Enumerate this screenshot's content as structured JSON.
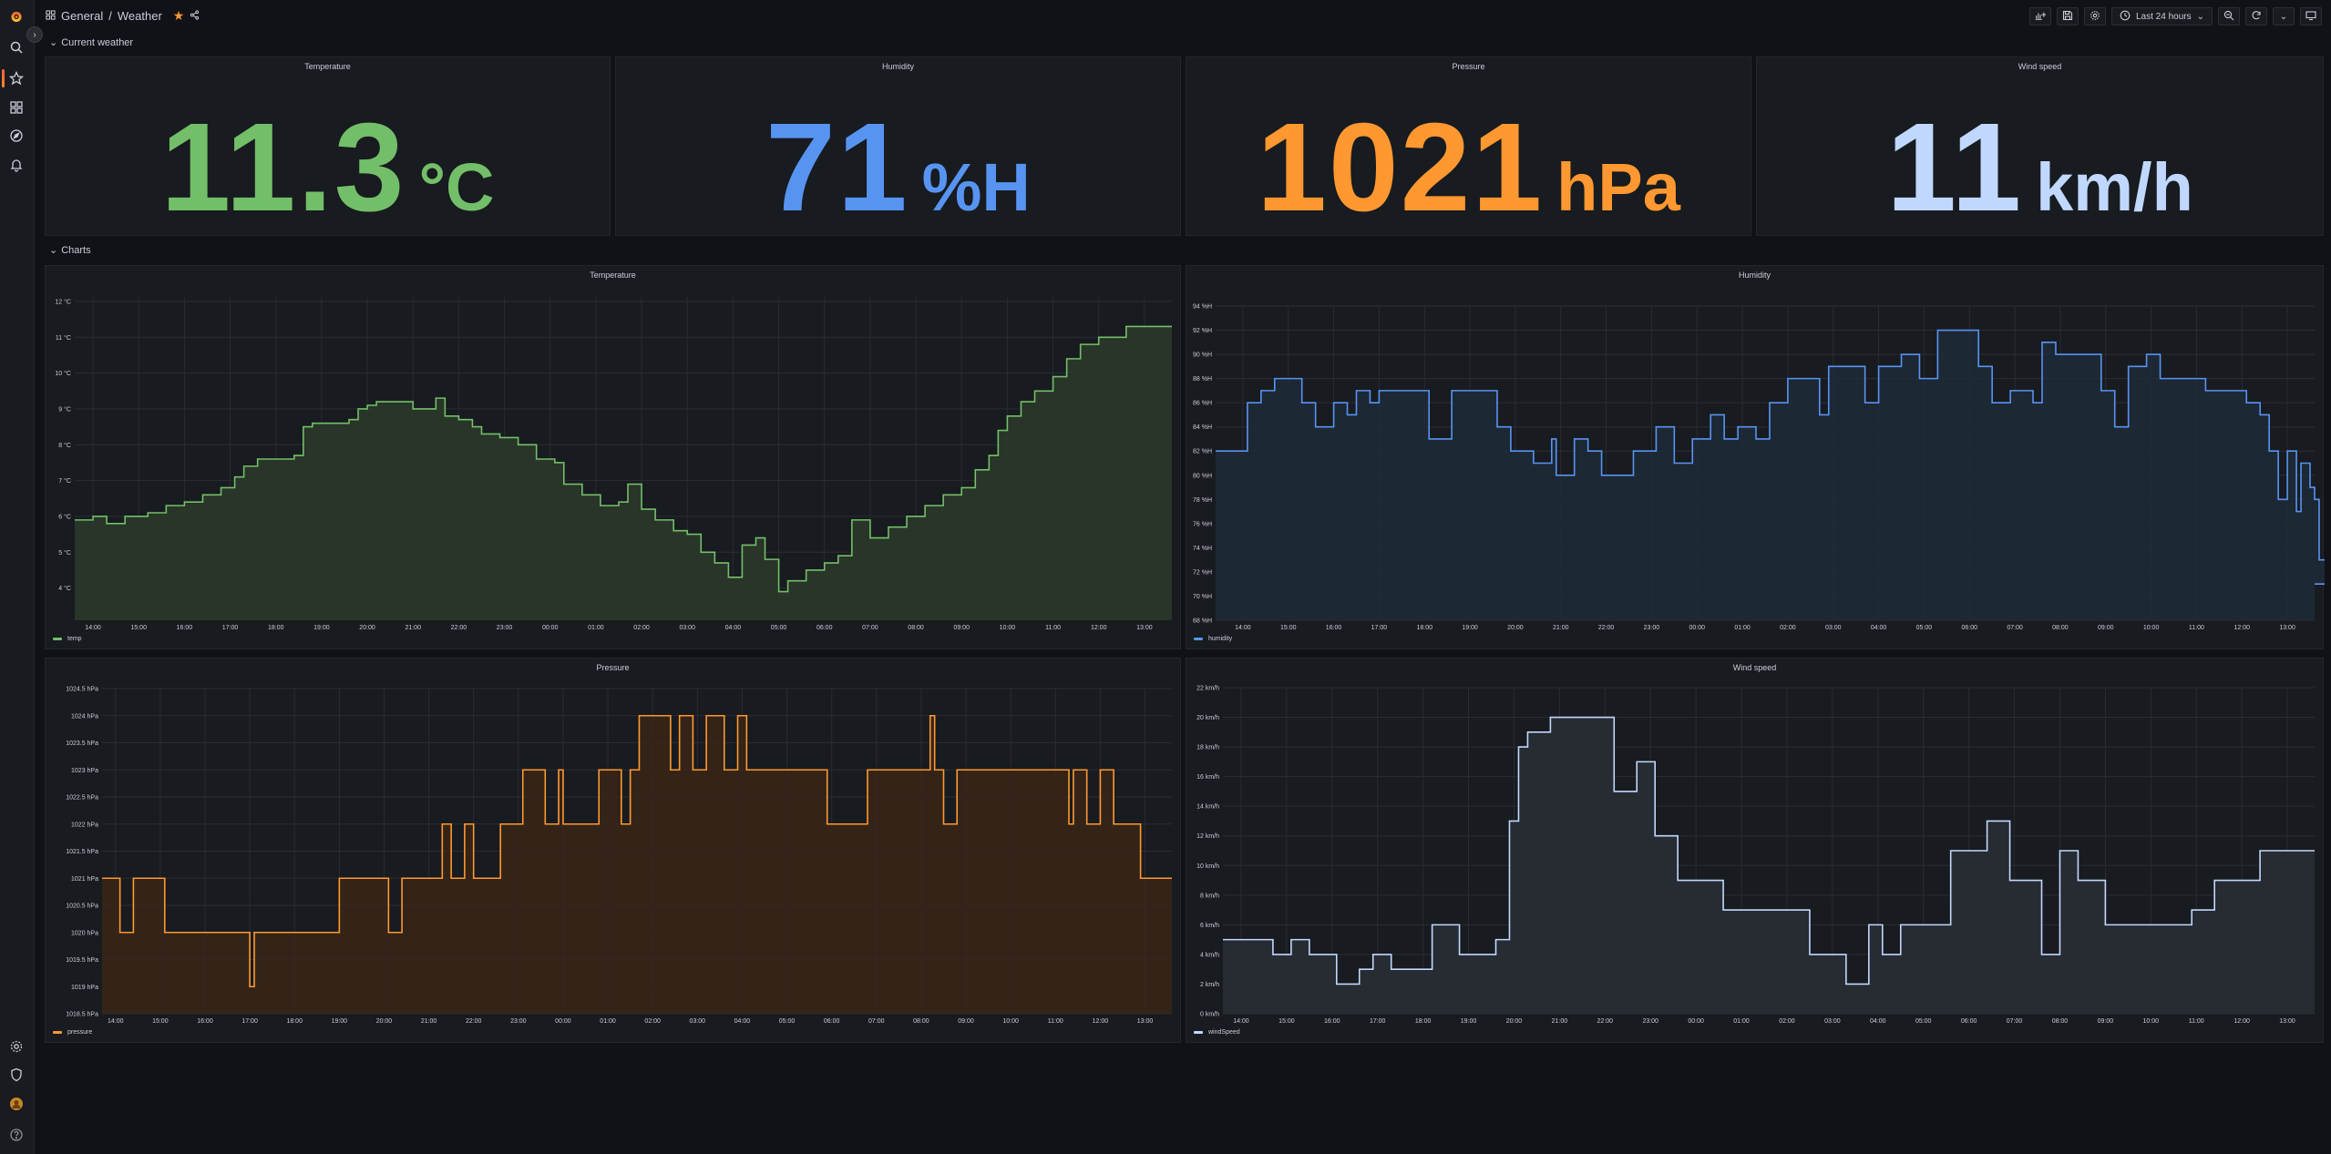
{
  "breadcrumb": {
    "folder": "General",
    "dashboard": "Weather"
  },
  "toolbar": {
    "time_range": "Last 24 hours"
  },
  "rows": {
    "current": "Current weather",
    "charts": "Charts"
  },
  "colors": {
    "temperature": "#73bf69",
    "humidity": "#5794f2",
    "pressure": "#ff9830",
    "wind": "#c0d8ff",
    "accent": "#f55f3e"
  },
  "stats": [
    {
      "title": "Temperature",
      "value": "11.3",
      "unit": "°C",
      "color": "#73bf69"
    },
    {
      "title": "Humidity",
      "value": "71",
      "unit": "%H",
      "color": "#5794f2"
    },
    {
      "title": "Pressure",
      "value": "1021",
      "unit": "hPa",
      "color": "#ff9830"
    },
    {
      "title": "Wind speed",
      "value": "11",
      "unit": "km/h",
      "color": "#c0d8ff"
    }
  ],
  "chart_data": [
    {
      "type": "line",
      "title": "Temperature",
      "legend": "temp",
      "color": "#73bf69",
      "step": true,
      "fill": "#2c3a2a",
      "x_ticks": [
        "14:00",
        "15:00",
        "16:00",
        "17:00",
        "18:00",
        "19:00",
        "20:00",
        "21:00",
        "22:00",
        "23:00",
        "00:00",
        "01:00",
        "02:00",
        "03:00",
        "04:00",
        "05:00",
        "06:00",
        "07:00",
        "08:00",
        "09:00",
        "10:00",
        "11:00",
        "12:00",
        "13:00"
      ],
      "y_ticks": [
        "4 °C",
        "5 °C",
        "6 °C",
        "7 °C",
        "8 °C",
        "9 °C",
        "10 °C",
        "11 °C",
        "12 °C"
      ],
      "ylim": [
        3.1,
        12.1
      ],
      "x_range": [
        13.6,
        37.6
      ],
      "points": [
        [
          13.6,
          5.9
        ],
        [
          14.0,
          6.0
        ],
        [
          14.3,
          5.8
        ],
        [
          14.7,
          6.0
        ],
        [
          15.2,
          6.1
        ],
        [
          15.6,
          6.3
        ],
        [
          16.0,
          6.4
        ],
        [
          16.4,
          6.6
        ],
        [
          16.8,
          6.8
        ],
        [
          17.1,
          7.1
        ],
        [
          17.3,
          7.4
        ],
        [
          17.6,
          7.6
        ],
        [
          18.0,
          7.6
        ],
        [
          18.4,
          7.7
        ],
        [
          18.6,
          8.5
        ],
        [
          18.8,
          8.6
        ],
        [
          19.2,
          8.6
        ],
        [
          19.6,
          8.7
        ],
        [
          19.8,
          9.0
        ],
        [
          20.0,
          9.1
        ],
        [
          20.2,
          9.2
        ],
        [
          21.0,
          9.0
        ],
        [
          21.5,
          9.3
        ],
        [
          21.7,
          8.8
        ],
        [
          22.0,
          8.7
        ],
        [
          22.3,
          8.5
        ],
        [
          22.5,
          8.3
        ],
        [
          22.9,
          8.2
        ],
        [
          23.3,
          8.0
        ],
        [
          23.7,
          7.6
        ],
        [
          24.1,
          7.5
        ],
        [
          24.3,
          6.9
        ],
        [
          24.7,
          6.6
        ],
        [
          25.1,
          6.3
        ],
        [
          25.5,
          6.4
        ],
        [
          25.7,
          6.9
        ],
        [
          26.0,
          6.2
        ],
        [
          26.3,
          5.9
        ],
        [
          26.7,
          5.6
        ],
        [
          27.0,
          5.5
        ],
        [
          27.3,
          5.0
        ],
        [
          27.6,
          4.7
        ],
        [
          27.9,
          4.3
        ],
        [
          28.2,
          5.2
        ],
        [
          28.5,
          5.4
        ],
        [
          28.7,
          4.8
        ],
        [
          29.0,
          3.9
        ],
        [
          29.2,
          4.2
        ],
        [
          29.6,
          4.5
        ],
        [
          30.0,
          4.7
        ],
        [
          30.3,
          4.9
        ],
        [
          30.6,
          5.9
        ],
        [
          31.0,
          5.4
        ],
        [
          31.4,
          5.7
        ],
        [
          31.8,
          6.0
        ],
        [
          32.2,
          6.3
        ],
        [
          32.6,
          6.6
        ],
        [
          33.0,
          6.8
        ],
        [
          33.3,
          7.3
        ],
        [
          33.6,
          7.7
        ],
        [
          33.8,
          8.4
        ],
        [
          34.0,
          8.8
        ],
        [
          34.3,
          9.2
        ],
        [
          34.6,
          9.5
        ],
        [
          35.0,
          9.9
        ],
        [
          35.3,
          10.4
        ],
        [
          35.6,
          10.8
        ],
        [
          36.0,
          11.0
        ],
        [
          36.6,
          11.3
        ],
        [
          37.6,
          11.3
        ]
      ]
    },
    {
      "type": "line",
      "title": "Humidity",
      "legend": "humidity",
      "color": "#5794f2",
      "step": true,
      "fill": "#1f2a3a",
      "x_ticks": [
        "14:00",
        "15:00",
        "16:00",
        "17:00",
        "18:00",
        "19:00",
        "20:00",
        "21:00",
        "22:00",
        "23:00",
        "00:00",
        "01:00",
        "02:00",
        "03:00",
        "04:00",
        "05:00",
        "06:00",
        "07:00",
        "08:00",
        "09:00",
        "10:00",
        "11:00",
        "12:00",
        "13:00"
      ],
      "y_ticks": [
        "68 %H",
        "70 %H",
        "72 %H",
        "74 %H",
        "76 %H",
        "78 %H",
        "80 %H",
        "82 %H",
        "84 %H",
        "86 %H",
        "88 %H",
        "90 %H",
        "92 %H",
        "94 %H"
      ],
      "ylim": [
        68,
        94
      ],
      "x_range": [
        13.4,
        37.6
      ],
      "points": [
        [
          13.4,
          82
        ],
        [
          13.9,
          82
        ],
        [
          14.1,
          86
        ],
        [
          14.4,
          87
        ],
        [
          14.7,
          88
        ],
        [
          15.3,
          86
        ],
        [
          15.6,
          84
        ],
        [
          16.0,
          86
        ],
        [
          16.3,
          85
        ],
        [
          16.5,
          87
        ],
        [
          16.8,
          86
        ],
        [
          17.0,
          87
        ],
        [
          18.1,
          83
        ],
        [
          18.6,
          87
        ],
        [
          19.6,
          84
        ],
        [
          19.9,
          82
        ],
        [
          20.4,
          81
        ],
        [
          20.8,
          83
        ],
        [
          20.9,
          80
        ],
        [
          21.3,
          83
        ],
        [
          21.6,
          82
        ],
        [
          21.9,
          80
        ],
        [
          22.6,
          82
        ],
        [
          23.1,
          84
        ],
        [
          23.5,
          81
        ],
        [
          23.9,
          83
        ],
        [
          24.3,
          85
        ],
        [
          24.6,
          83
        ],
        [
          24.9,
          84
        ],
        [
          25.3,
          83
        ],
        [
          25.6,
          86
        ],
        [
          26.0,
          88
        ],
        [
          26.7,
          85
        ],
        [
          26.9,
          89
        ],
        [
          27.7,
          86
        ],
        [
          28.0,
          89
        ],
        [
          28.5,
          90
        ],
        [
          28.9,
          88
        ],
        [
          29.3,
          92
        ],
        [
          30.2,
          89
        ],
        [
          30.5,
          86
        ],
        [
          30.9,
          87
        ],
        [
          31.4,
          86
        ],
        [
          31.6,
          91
        ],
        [
          31.9,
          90
        ],
        [
          32.9,
          87
        ],
        [
          33.2,
          84
        ],
        [
          33.5,
          89
        ],
        [
          33.9,
          90
        ],
        [
          34.2,
          88
        ],
        [
          35.2,
          87
        ],
        [
          36.1,
          86
        ],
        [
          36.4,
          85
        ],
        [
          36.6,
          82
        ],
        [
          36.8,
          78
        ],
        [
          37.0,
          82
        ],
        [
          37.2,
          77
        ],
        [
          37.3,
          81
        ],
        [
          37.5,
          79
        ],
        [
          37.6,
          78
        ],
        [
          37.7,
          73
        ],
        [
          37.9,
          72
        ],
        [
          38.1,
          71
        ]
      ]
    },
    {
      "type": "line",
      "title": "Pressure",
      "legend": "pressure",
      "color": "#ff9830",
      "step": true,
      "fill": "#3a2618",
      "x_ticks": [
        "14:00",
        "15:00",
        "16:00",
        "17:00",
        "18:00",
        "19:00",
        "20:00",
        "21:00",
        "22:00",
        "23:00",
        "00:00",
        "01:00",
        "02:00",
        "03:00",
        "04:00",
        "05:00",
        "06:00",
        "07:00",
        "08:00",
        "09:00",
        "10:00",
        "11:00",
        "12:00",
        "13:00"
      ],
      "y_ticks": [
        "1018.5 hPa",
        "1019 hPa",
        "1019.5 hPa",
        "1020 hPa",
        "1020.5 hPa",
        "1021 hPa",
        "1021.5 hPa",
        "1022 hPa",
        "1022.5 hPa",
        "1023 hPa",
        "1023.5 hPa",
        "1024 hPa",
        "1024.5 hPa"
      ],
      "ylim": [
        1018.5,
        1024.5
      ],
      "x_range": [
        13.7,
        37.6
      ],
      "points": [
        [
          13.7,
          1021
        ],
        [
          14.1,
          1020
        ],
        [
          14.4,
          1021
        ],
        [
          15.1,
          1020
        ],
        [
          17.0,
          1019
        ],
        [
          17.1,
          1020
        ],
        [
          19.0,
          1021
        ],
        [
          20.1,
          1020
        ],
        [
          20.4,
          1021
        ],
        [
          21.3,
          1022
        ],
        [
          21.5,
          1021
        ],
        [
          21.8,
          1022
        ],
        [
          22.0,
          1021
        ],
        [
          22.6,
          1022
        ],
        [
          23.1,
          1023
        ],
        [
          23.6,
          1022
        ],
        [
          23.9,
          1023
        ],
        [
          24.0,
          1022
        ],
        [
          24.8,
          1023
        ],
        [
          25.3,
          1022
        ],
        [
          25.5,
          1023
        ],
        [
          25.7,
          1024
        ],
        [
          26.4,
          1023
        ],
        [
          26.6,
          1024
        ],
        [
          26.9,
          1023
        ],
        [
          27.2,
          1024
        ],
        [
          27.6,
          1023
        ],
        [
          27.9,
          1024
        ],
        [
          28.1,
          1023
        ],
        [
          29.9,
          1022
        ],
        [
          30.8,
          1023
        ],
        [
          32.2,
          1024
        ],
        [
          32.3,
          1023
        ],
        [
          32.5,
          1022
        ],
        [
          32.8,
          1023
        ],
        [
          35.3,
          1022
        ],
        [
          35.4,
          1023
        ],
        [
          35.7,
          1022
        ],
        [
          36.0,
          1023
        ],
        [
          36.3,
          1022
        ],
        [
          36.9,
          1021
        ],
        [
          37.6,
          1021
        ]
      ]
    },
    {
      "type": "line",
      "title": "Wind speed",
      "legend": "windSpeed",
      "color": "#c0d8ff",
      "step": true,
      "fill": "#2a2e36",
      "x_ticks": [
        "14:00",
        "15:00",
        "16:00",
        "17:00",
        "18:00",
        "19:00",
        "20:00",
        "21:00",
        "22:00",
        "23:00",
        "00:00",
        "01:00",
        "02:00",
        "03:00",
        "04:00",
        "05:00",
        "06:00",
        "07:00",
        "08:00",
        "09:00",
        "10:00",
        "11:00",
        "12:00",
        "13:00"
      ],
      "y_ticks": [
        "0 km/h",
        "2 km/h",
        "4 km/h",
        "6 km/h",
        "8 km/h",
        "10 km/h",
        "12 km/h",
        "14 km/h",
        "16 km/h",
        "18 km/h",
        "20 km/h",
        "22 km/h"
      ],
      "ylim": [
        0,
        22
      ],
      "x_range": [
        13.6,
        37.6
      ],
      "points": [
        [
          13.6,
          5
        ],
        [
          14.7,
          4
        ],
        [
          15.1,
          5
        ],
        [
          15.5,
          4
        ],
        [
          16.1,
          2
        ],
        [
          16.6,
          3
        ],
        [
          16.9,
          4
        ],
        [
          17.3,
          3
        ],
        [
          18.2,
          6
        ],
        [
          18.8,
          4
        ],
        [
          19.6,
          5
        ],
        [
          19.9,
          13
        ],
        [
          20.1,
          18
        ],
        [
          20.3,
          19
        ],
        [
          20.8,
          20
        ],
        [
          22.2,
          15
        ],
        [
          22.7,
          17
        ],
        [
          23.1,
          12
        ],
        [
          23.6,
          9
        ],
        [
          24.6,
          7
        ],
        [
          26.5,
          4
        ],
        [
          27.3,
          2
        ],
        [
          27.8,
          6
        ],
        [
          28.1,
          4
        ],
        [
          28.5,
          6
        ],
        [
          29.6,
          11
        ],
        [
          30.4,
          13
        ],
        [
          30.9,
          9
        ],
        [
          31.6,
          4
        ],
        [
          32.0,
          11
        ],
        [
          32.4,
          9
        ],
        [
          33.0,
          6
        ],
        [
          34.4,
          6
        ],
        [
          34.9,
          7
        ],
        [
          35.4,
          9
        ],
        [
          36.0,
          9
        ],
        [
          36.4,
          11
        ]
      ]
    }
  ]
}
